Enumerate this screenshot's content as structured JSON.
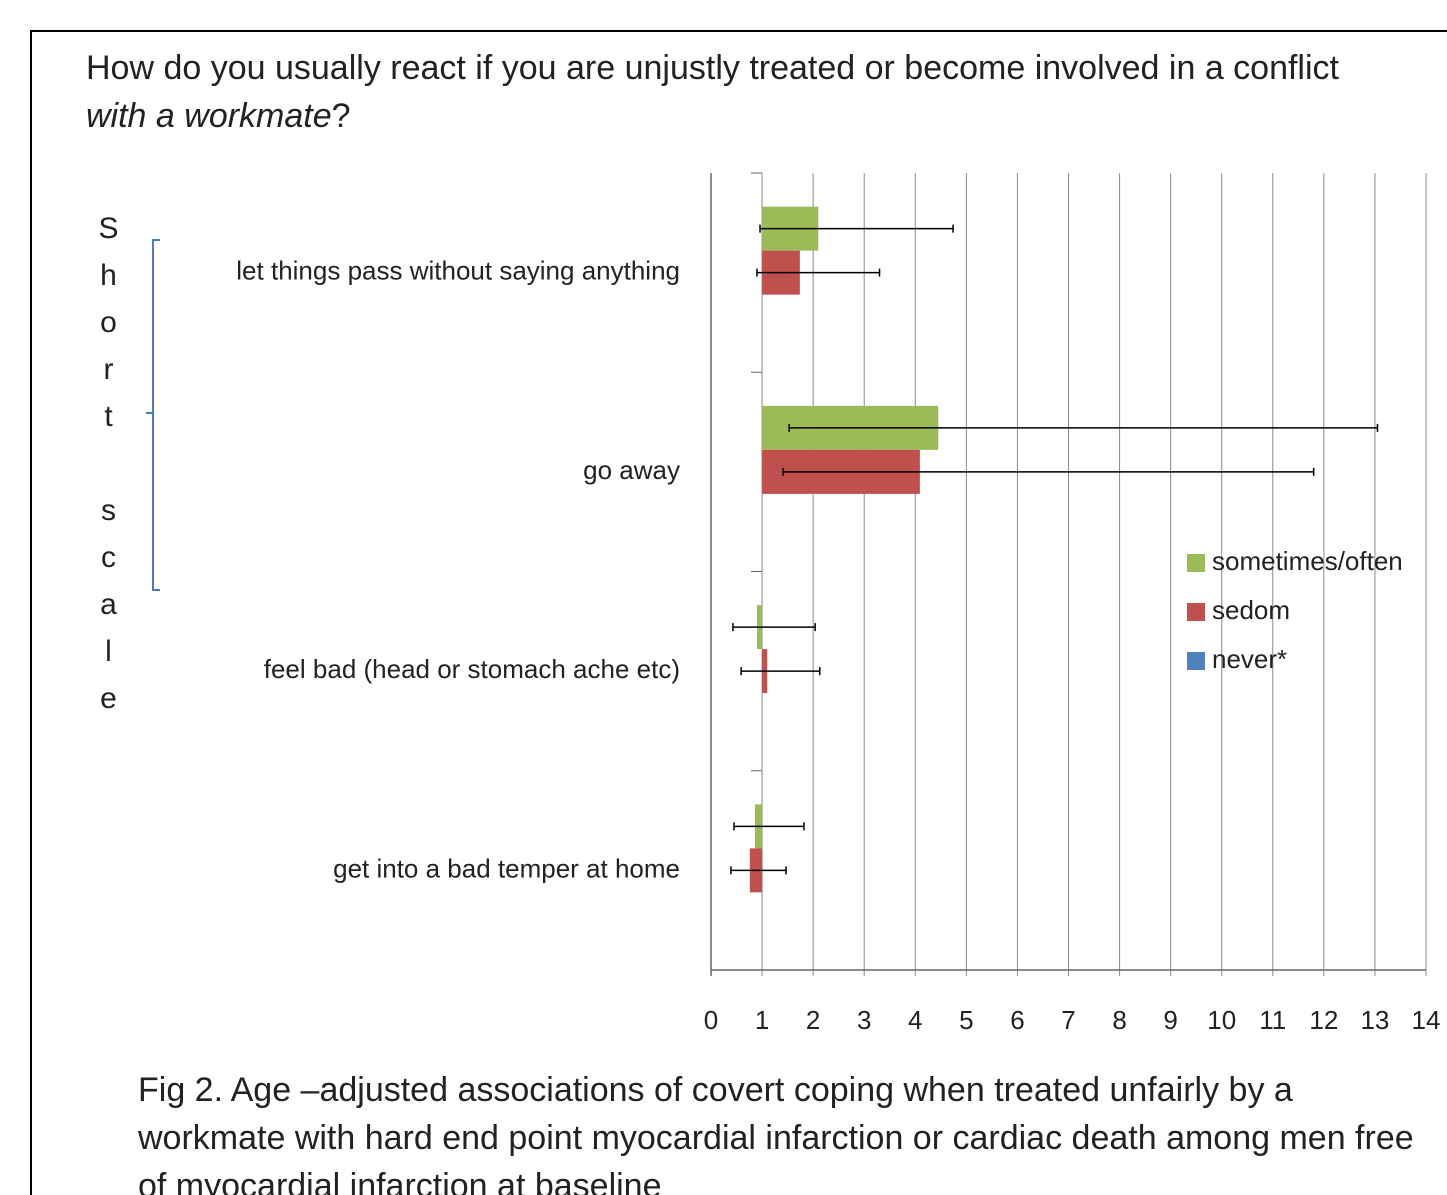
{
  "chart_data": {
    "type": "bar",
    "orientation": "horizontal",
    "title": "How do you usually react if you are unjustly treated or become involved in a conflict ",
    "title_emphasis": "with a workmate",
    "title_end": "?",
    "annotation": "Short scale",
    "caption": "Fig 2. Age –adjusted associations of covert coping when treated unfairly by a workmate with hard end point myocardial infarction or cardiac death among men free of myocardial infarction at baseline",
    "categories": [
      "let things pass without saying anything",
      "go away",
      "feel bad (head or stomach ache etc)",
      "get into a bad temper at home"
    ],
    "base": 1,
    "series": [
      {
        "name": "sometimes/often",
        "color": "#9bbb59",
        "values": [
          2.1,
          4.45,
          0.9,
          0.86
        ],
        "ci_low": [
          0.96,
          1.53,
          0.43,
          0.45
        ],
        "ci_high": [
          4.74,
          13.05,
          2.04,
          1.82
        ]
      },
      {
        "name": "sedom",
        "color": "#c0504d",
        "values": [
          1.74,
          4.09,
          1.1,
          0.76
        ],
        "ci_low": [
          0.9,
          1.41,
          0.59,
          0.39
        ],
        "ci_high": [
          3.3,
          11.8,
          2.13,
          1.47
        ]
      },
      {
        "name": "never*",
        "color": "#4f81bd",
        "values": [
          1,
          1,
          1,
          1
        ]
      }
    ],
    "xlim": [
      0,
      14
    ],
    "xticks": [
      0,
      1,
      2,
      3,
      4,
      5,
      6,
      7,
      8,
      9,
      10,
      11,
      12,
      13,
      14
    ],
    "grid": true,
    "legend": "right"
  }
}
